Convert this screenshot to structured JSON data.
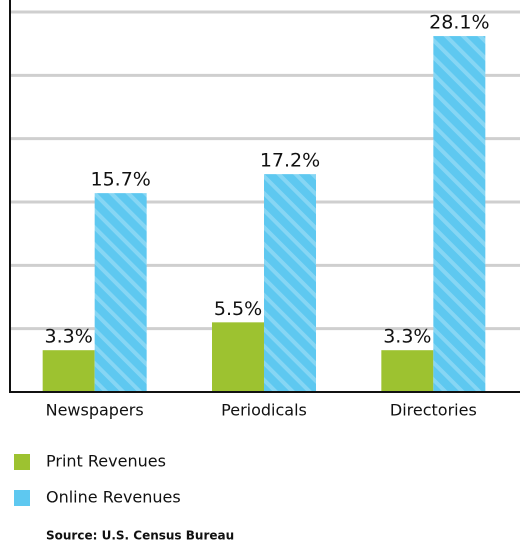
{
  "chart_data": {
    "type": "bar",
    "categories": [
      "Newspapers",
      "Periodicals",
      "Directories"
    ],
    "series": [
      {
        "name": "Print Revenues",
        "color": "#9dc230",
        "values": [
          3.3,
          5.5,
          3.3
        ],
        "value_labels": [
          "3.3%",
          "5.5%",
          "3.3%"
        ]
      },
      {
        "name": "Online Revenues",
        "color": "#5ec8f0",
        "values": [
          15.7,
          17.2,
          28.1
        ],
        "value_labels": [
          "15.7%",
          "17.2%",
          "28.1%"
        ],
        "hatch": true
      }
    ],
    "ylim": [
      0,
      30
    ],
    "yticks": [
      0,
      5,
      10,
      15,
      20,
      25,
      30
    ],
    "grid": true,
    "source": "Source:  U.S. Census Bureau"
  }
}
